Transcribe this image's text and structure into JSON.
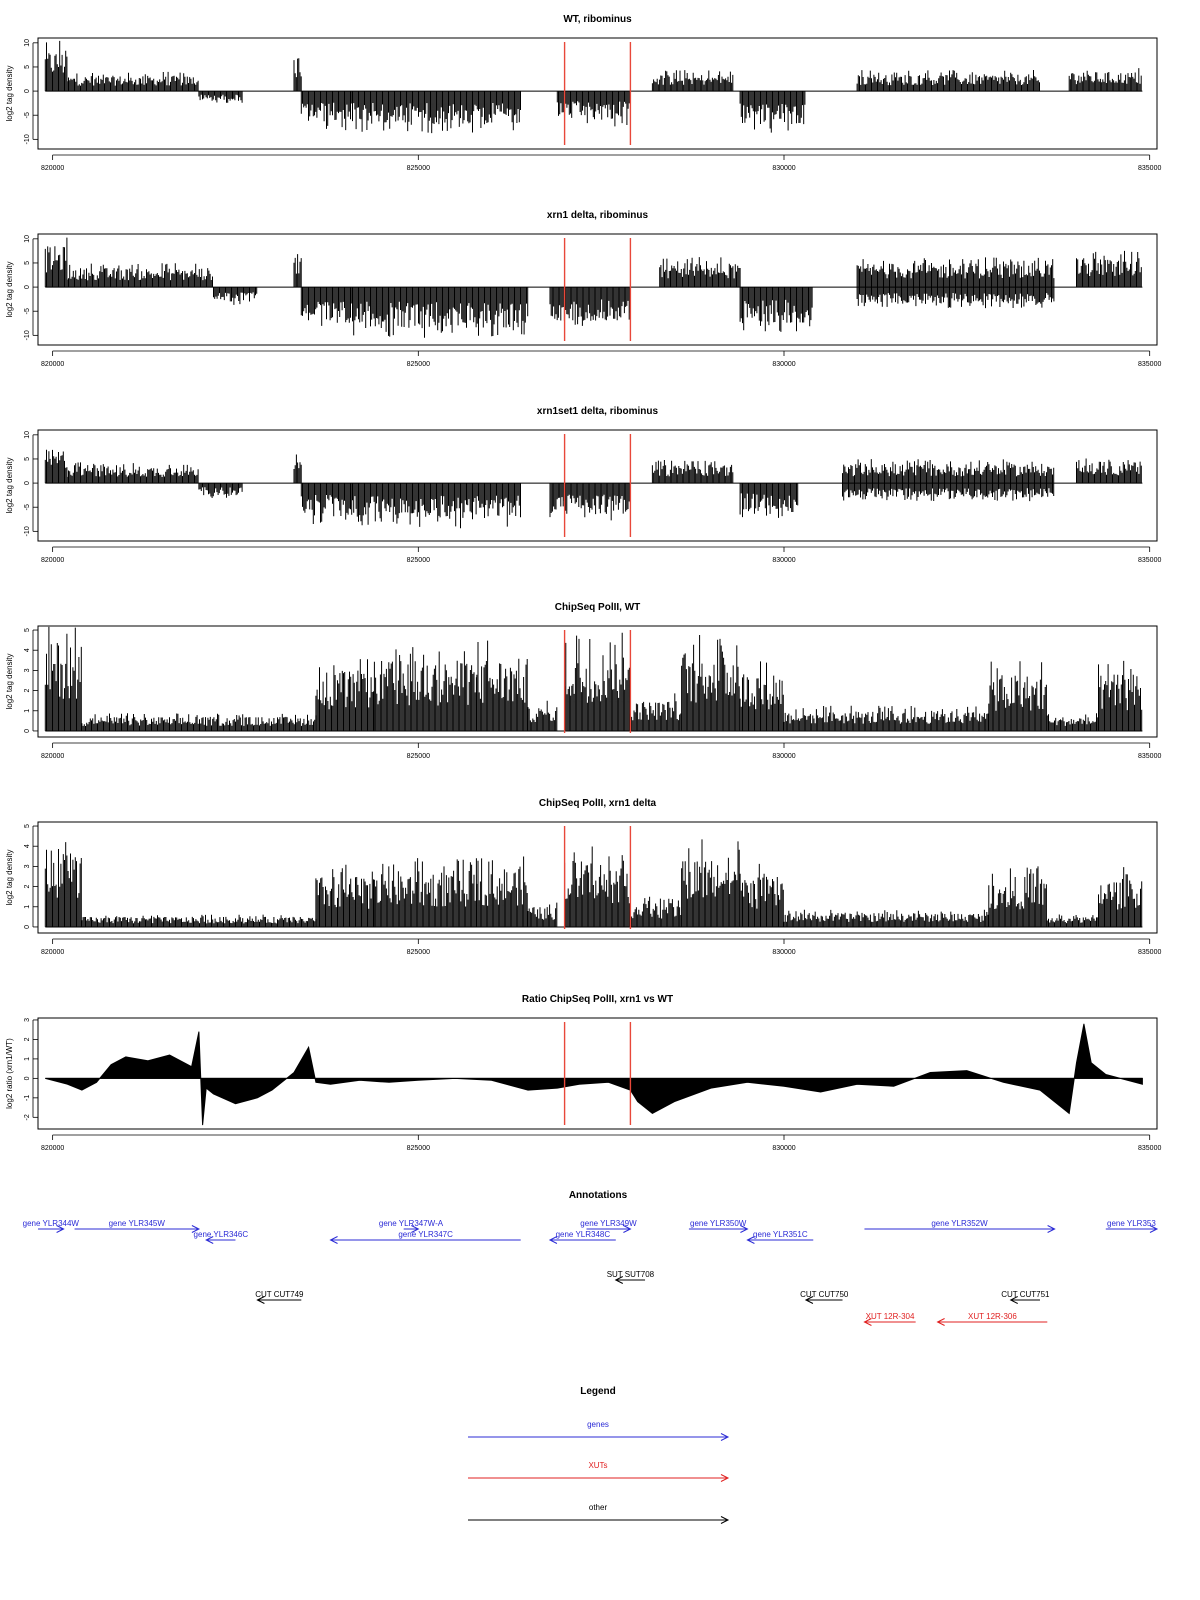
{
  "chart_data": [
    {
      "type": "bar",
      "title": "WT, ribominus",
      "ylabel": "log2 tag density",
      "xlim": [
        819800,
        835100
      ],
      "ylim": [
        -12,
        11
      ],
      "yticks": [
        -10,
        -5,
        0,
        5,
        10
      ],
      "xticks": [
        820000,
        825000,
        830000,
        835000
      ],
      "markers": [
        827000,
        827900
      ],
      "marker_color": "#e8483a",
      "segments": [
        {
          "start": 819900,
          "end": 820200,
          "value": 8.5,
          "sign": 1
        },
        {
          "start": 820200,
          "end": 822000,
          "value": 3.2,
          "sign": 1
        },
        {
          "start": 822000,
          "end": 822600,
          "value": -2.0,
          "sign": -1
        },
        {
          "start": 823300,
          "end": 823400,
          "value": 7.5,
          "sign": 1
        },
        {
          "start": 823400,
          "end": 824100,
          "value": -6.5,
          "sign": -1
        },
        {
          "start": 824100,
          "end": 826400,
          "value": -7.0,
          "sign": -1
        },
        {
          "start": 826900,
          "end": 827900,
          "value": -6.0,
          "sign": -1
        },
        {
          "start": 828200,
          "end": 829300,
          "value": 3.5,
          "sign": 1
        },
        {
          "start": 829400,
          "end": 830300,
          "value": -7.0,
          "sign": -1
        },
        {
          "start": 831000,
          "end": 833500,
          "value": 3.5,
          "sign": 1
        },
        {
          "start": 833900,
          "end": 834900,
          "value": 4.0,
          "sign": 1
        }
      ]
    },
    {
      "type": "bar",
      "title": "xrn1 delta, ribominus",
      "ylabel": "log2 tag density",
      "xlim": [
        819800,
        835100
      ],
      "ylim": [
        -12,
        11
      ],
      "yticks": [
        -10,
        -5,
        0,
        5,
        10
      ],
      "xticks": [
        820000,
        825000,
        830000,
        835000
      ],
      "markers": [
        827000,
        827900
      ],
      "marker_color": "#e8483a",
      "segments": [
        {
          "start": 819900,
          "end": 820200,
          "value": 8.5,
          "sign": 1
        },
        {
          "start": 820200,
          "end": 822200,
          "value": 4.0,
          "sign": 1
        },
        {
          "start": 822200,
          "end": 822800,
          "value": -3.0,
          "sign": -1
        },
        {
          "start": 823300,
          "end": 823400,
          "value": 6.5,
          "sign": 1
        },
        {
          "start": 823400,
          "end": 824100,
          "value": -7.5,
          "sign": -1
        },
        {
          "start": 824100,
          "end": 826500,
          "value": -8.5,
          "sign": -1
        },
        {
          "start": 826800,
          "end": 827900,
          "value": -7.0,
          "sign": -1
        },
        {
          "start": 828300,
          "end": 829400,
          "value": 5.0,
          "sign": 1
        },
        {
          "start": 829400,
          "end": 830400,
          "value": -7.5,
          "sign": -1
        },
        {
          "start": 831000,
          "end": 833700,
          "value": 5.0,
          "sign": 1
        },
        {
          "start": 831000,
          "end": 833700,
          "value": -3.5,
          "sign": -1
        },
        {
          "start": 834000,
          "end": 834900,
          "value": 6.0,
          "sign": 1
        }
      ]
    },
    {
      "type": "bar",
      "title": "xrn1set1 delta, ribominus",
      "ylabel": "log2 tag density",
      "xlim": [
        819800,
        835100
      ],
      "ylim": [
        -12,
        11
      ],
      "yticks": [
        -10,
        -5,
        0,
        5,
        10
      ],
      "xticks": [
        820000,
        825000,
        830000,
        835000
      ],
      "markers": [
        827000,
        827900
      ],
      "marker_color": "#e8483a",
      "segments": [
        {
          "start": 819900,
          "end": 820200,
          "value": 7.0,
          "sign": 1
        },
        {
          "start": 820200,
          "end": 822000,
          "value": 3.5,
          "sign": 1
        },
        {
          "start": 822000,
          "end": 822600,
          "value": -2.5,
          "sign": -1
        },
        {
          "start": 823300,
          "end": 823400,
          "value": 5.0,
          "sign": 1
        },
        {
          "start": 823400,
          "end": 824100,
          "value": -7.0,
          "sign": -1
        },
        {
          "start": 824100,
          "end": 826400,
          "value": -7.5,
          "sign": -1
        },
        {
          "start": 826800,
          "end": 827900,
          "value": -6.5,
          "sign": -1
        },
        {
          "start": 828200,
          "end": 829300,
          "value": 4.0,
          "sign": 1
        },
        {
          "start": 829400,
          "end": 830200,
          "value": -6.0,
          "sign": -1
        },
        {
          "start": 830800,
          "end": 833700,
          "value": 4.0,
          "sign": 1
        },
        {
          "start": 830800,
          "end": 833700,
          "value": -3.0,
          "sign": -1
        },
        {
          "start": 834000,
          "end": 834900,
          "value": 4.5,
          "sign": 1
        }
      ]
    },
    {
      "type": "bar",
      "title": "ChipSeq PolII, WT",
      "ylabel": "log2 tag density",
      "xlim": [
        819800,
        835100
      ],
      "ylim": [
        -0.3,
        5.2
      ],
      "yticks": [
        0,
        1,
        2,
        3,
        4,
        5
      ],
      "xticks": [
        820000,
        825000,
        830000,
        835000
      ],
      "markers": [
        827000,
        827900
      ],
      "marker_color": "#e8483a",
      "segments": [
        {
          "start": 819900,
          "end": 820400,
          "value": 4.5,
          "sign": 1
        },
        {
          "start": 820400,
          "end": 823600,
          "value": 0.7,
          "sign": 1
        },
        {
          "start": 823600,
          "end": 824400,
          "value": 3.0,
          "sign": 1
        },
        {
          "start": 824400,
          "end": 825800,
          "value": 3.5,
          "sign": 1
        },
        {
          "start": 825800,
          "end": 826500,
          "value": 3.6,
          "sign": 1
        },
        {
          "start": 826500,
          "end": 826900,
          "value": 1.2,
          "sign": 1
        },
        {
          "start": 827000,
          "end": 827900,
          "value": 4.0,
          "sign": 1
        },
        {
          "start": 827900,
          "end": 828600,
          "value": 1.5,
          "sign": 1
        },
        {
          "start": 828600,
          "end": 829400,
          "value": 4.0,
          "sign": 1
        },
        {
          "start": 829400,
          "end": 830000,
          "value": 3.0,
          "sign": 1
        },
        {
          "start": 830000,
          "end": 832800,
          "value": 1.0,
          "sign": 1
        },
        {
          "start": 832800,
          "end": 833600,
          "value": 2.8,
          "sign": 1
        },
        {
          "start": 833600,
          "end": 834300,
          "value": 0.7,
          "sign": 1
        },
        {
          "start": 834300,
          "end": 834900,
          "value": 2.8,
          "sign": 1
        }
      ]
    },
    {
      "type": "bar",
      "title": "ChipSeq PolII, xrn1 delta",
      "ylabel": "log2 tag density",
      "xlim": [
        819800,
        835100
      ],
      "ylim": [
        -0.3,
        5.2
      ],
      "yticks": [
        0,
        1,
        2,
        3,
        4,
        5
      ],
      "xticks": [
        820000,
        825000,
        830000,
        835000
      ],
      "markers": [
        827000,
        827900
      ],
      "marker_color": "#e8483a",
      "segments": [
        {
          "start": 819900,
          "end": 820400,
          "value": 4.0,
          "sign": 1
        },
        {
          "start": 820400,
          "end": 823600,
          "value": 0.5,
          "sign": 1
        },
        {
          "start": 823600,
          "end": 824400,
          "value": 2.5,
          "sign": 1
        },
        {
          "start": 824400,
          "end": 825800,
          "value": 2.8,
          "sign": 1
        },
        {
          "start": 825800,
          "end": 826500,
          "value": 3.0,
          "sign": 1
        },
        {
          "start": 826500,
          "end": 826900,
          "value": 1.0,
          "sign": 1
        },
        {
          "start": 827000,
          "end": 827900,
          "value": 3.3,
          "sign": 1
        },
        {
          "start": 827900,
          "end": 828600,
          "value": 1.2,
          "sign": 1
        },
        {
          "start": 828600,
          "end": 829400,
          "value": 3.5,
          "sign": 1
        },
        {
          "start": 829400,
          "end": 830000,
          "value": 2.5,
          "sign": 1
        },
        {
          "start": 830000,
          "end": 832800,
          "value": 0.7,
          "sign": 1
        },
        {
          "start": 832800,
          "end": 833600,
          "value": 2.5,
          "sign": 1
        },
        {
          "start": 833600,
          "end": 834300,
          "value": 0.5,
          "sign": 1
        },
        {
          "start": 834300,
          "end": 834900,
          "value": 2.4,
          "sign": 1
        }
      ]
    },
    {
      "type": "area",
      "title": "Ratio ChipSeq PolII, xrn1 vs WT",
      "ylabel": "log2 ratio (xrn1/WT)",
      "xlim": [
        819800,
        835100
      ],
      "ylim": [
        -2.6,
        3.1
      ],
      "yticks": [
        -2,
        -1,
        0,
        1,
        2,
        3
      ],
      "xticks": [
        820000,
        825000,
        830000,
        835000
      ],
      "markers": [
        827000,
        827900
      ],
      "marker_color": "#e8483a",
      "x": [
        819900,
        820200,
        820400,
        820600,
        820800,
        821000,
        821300,
        821600,
        821900,
        822000,
        822050,
        822100,
        822200,
        822500,
        822800,
        823000,
        823300,
        823500,
        823600,
        823800,
        824200,
        824600,
        825000,
        825500,
        826000,
        826500,
        826900,
        827200,
        827600,
        827900,
        828000,
        828200,
        828500,
        829000,
        829500,
        830000,
        830500,
        831000,
        831500,
        832000,
        832500,
        833000,
        833500,
        833900,
        834000,
        834100,
        834200,
        834400,
        834900
      ],
      "y": [
        0,
        -0.3,
        -0.6,
        -0.2,
        0.7,
        1.1,
        0.9,
        1.2,
        0.6,
        2.4,
        -2.4,
        -0.5,
        -0.8,
        -1.3,
        -1.0,
        -0.6,
        0.3,
        1.6,
        -0.2,
        -0.3,
        -0.1,
        -0.2,
        -0.1,
        0,
        -0.1,
        -0.6,
        -0.5,
        -0.3,
        -0.2,
        -0.6,
        -1.2,
        -1.8,
        -1.2,
        -0.5,
        -0.2,
        -0.4,
        -0.7,
        -0.3,
        -0.4,
        0.3,
        0.4,
        -0.2,
        -0.6,
        -1.8,
        0.8,
        2.8,
        0.8,
        0.2,
        -0.3
      ]
    }
  ],
  "annotations": {
    "title": "Annotations",
    "features": [
      {
        "label": "gene YLR344W",
        "category": "genes",
        "start": 819800,
        "end": 820150,
        "direction": "right",
        "row": 0
      },
      {
        "label": "gene YLR345W",
        "category": "genes",
        "start": 820300,
        "end": 822000,
        "direction": "right",
        "row": 0
      },
      {
        "label": "gene YLR346C",
        "category": "genes",
        "start": 822100,
        "end": 822500,
        "direction": "left",
        "row": 1
      },
      {
        "label": "gene YLR347W-A",
        "category": "genes",
        "start": 824800,
        "end": 825000,
        "direction": "right",
        "row": 0
      },
      {
        "label": "gene YLR347C",
        "category": "genes",
        "start": 823800,
        "end": 826400,
        "direction": "left",
        "row": 1
      },
      {
        "label": "gene YLR348C",
        "category": "genes",
        "start": 826800,
        "end": 827700,
        "direction": "left",
        "row": 1
      },
      {
        "label": "gene YLR349W",
        "category": "genes",
        "start": 827300,
        "end": 827900,
        "direction": "right",
        "row": 0
      },
      {
        "label": "gene YLR350W",
        "category": "genes",
        "start": 828700,
        "end": 829500,
        "direction": "right",
        "row": 0
      },
      {
        "label": "gene YLR351C",
        "category": "genes",
        "start": 829500,
        "end": 830400,
        "direction": "left",
        "row": 1
      },
      {
        "label": "gene YLR352W",
        "category": "genes",
        "start": 831100,
        "end": 833700,
        "direction": "right",
        "row": 0
      },
      {
        "label": "gene YLR353",
        "category": "genes",
        "start": 834400,
        "end": 835100,
        "direction": "right",
        "row": 0
      },
      {
        "label": "SUT SUT708",
        "category": "other",
        "start": 827700,
        "end": 828100,
        "direction": "left",
        "row": 2
      },
      {
        "label": "CUT CUT749",
        "category": "other",
        "start": 822800,
        "end": 823400,
        "direction": "left",
        "row": 3
      },
      {
        "label": "CUT CUT750",
        "category": "other",
        "start": 830300,
        "end": 830800,
        "direction": "left",
        "row": 3
      },
      {
        "label": "CUT CUT751",
        "category": "other",
        "start": 833100,
        "end": 833500,
        "direction": "left",
        "row": 3
      },
      {
        "label": "XUT 12R-304",
        "category": "XUTs",
        "start": 831100,
        "end": 831800,
        "direction": "left",
        "row": 4
      },
      {
        "label": "XUT 12R-306",
        "category": "XUTs",
        "start": 832100,
        "end": 833600,
        "direction": "left",
        "row": 4
      }
    ]
  },
  "legend": {
    "title": "Legend",
    "items": [
      {
        "label": "genes",
        "color": "#2b2bd6"
      },
      {
        "label": "XUTs",
        "color": "#e02020"
      },
      {
        "label": "other",
        "color": "#000000"
      }
    ]
  },
  "colors": {
    "genes": "#2b2bd6",
    "XUTs": "#e02020",
    "other": "#000000"
  }
}
